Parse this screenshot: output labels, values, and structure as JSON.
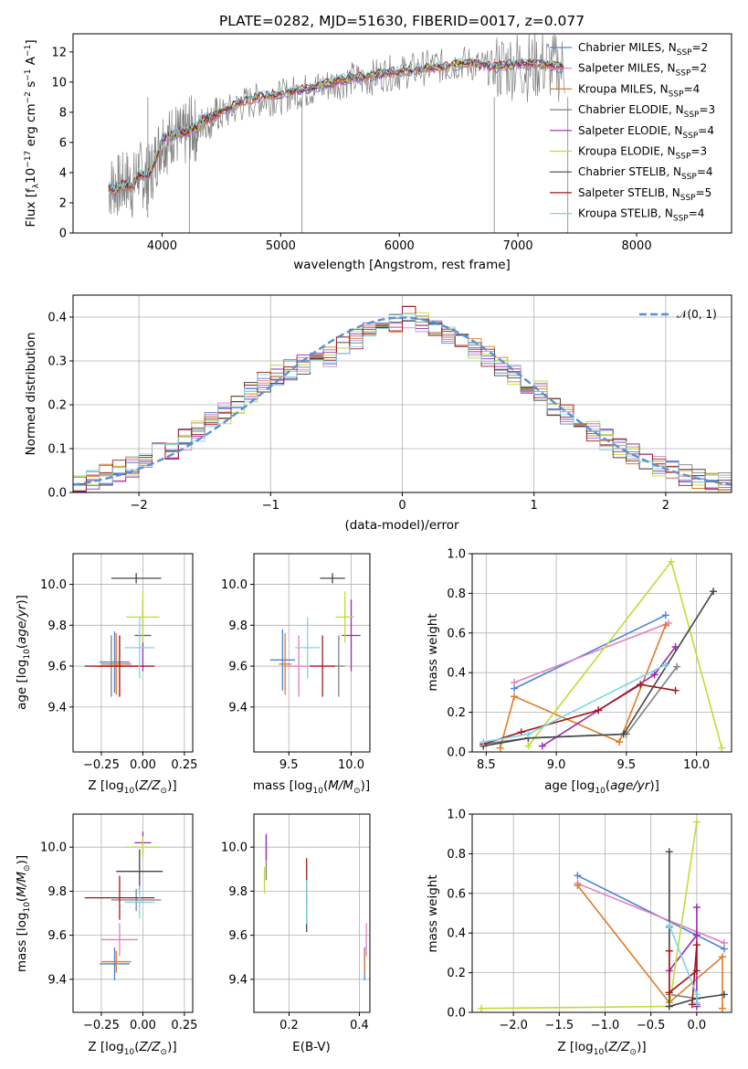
{
  "colors": {
    "Chabrier MILES": "#4f81d6",
    "Salpeter MILES": "#e07fc0",
    "Kroupa MILES": "#e07a24",
    "Chabrier ELODIE": "#7f7f7f",
    "Salpeter ELODIE": "#9a2ab0",
    "Kroupa ELODIE": "#bedd35",
    "Chabrier STELIB": "#444444",
    "Salpeter STELIB": "#a01818",
    "Kroupa STELIB": "#7fd3e6",
    "data": "#808080",
    "normal": "#5b8fd4"
  },
  "chart_data": [
    {
      "type": "line",
      "title": "PLATE=0282, MJD=51630, FIBERID=0017, z=0.077",
      "xlabel": "wavelength [Angstrom, rest frame]",
      "ylabel": "Flux [fλ10⁻¹⁷ erg cm⁻² s⁻¹ A⁻¹]",
      "xlim": [
        3250,
        8800
      ],
      "ylim": [
        0,
        13.2
      ],
      "xticks": [
        4000,
        5000,
        6000,
        7000,
        8000
      ],
      "yticks": [
        0,
        2,
        4,
        6,
        8,
        10,
        12
      ],
      "grid": false,
      "legend_position": "right",
      "legend": [
        "Chabrier MILES, N_SSP=2",
        "Salpeter MILES, N_SSP=2",
        "Kroupa MILES, N_SSP=4",
        "Chabrier ELODIE, N_SSP=3",
        "Salpeter ELODIE, N_SSP=4",
        "Kroupa ELODIE, N_SSP=3",
        "Chabrier STELIB, N_SSP=4",
        "Salpeter STELIB, N_SSP=5",
        "Kroupa STELIB, N_SSP=4"
      ],
      "legend_display": [
        {
          "pre": "Chabrier MILES, N",
          "sub": "SSP",
          "post": "=2",
          "key": "Chabrier MILES"
        },
        {
          "pre": "Salpeter MILES, N",
          "sub": "SSP",
          "post": "=2",
          "key": "Salpeter MILES"
        },
        {
          "pre": "Kroupa MILES, N",
          "sub": "SSP",
          "post": "=4",
          "key": "Kroupa MILES"
        },
        {
          "pre": "Chabrier ELODIE, N",
          "sub": "SSP",
          "post": "=3",
          "key": "Chabrier ELODIE"
        },
        {
          "pre": "Salpeter ELODIE, N",
          "sub": "SSP",
          "post": "=4",
          "key": "Salpeter ELODIE"
        },
        {
          "pre": "Kroupa ELODIE, N",
          "sub": "SSP",
          "post": "=3",
          "key": "Kroupa ELODIE"
        },
        {
          "pre": "Chabrier STELIB, N",
          "sub": "SSP",
          "post": "=4",
          "key": "Chabrier STELIB"
        },
        {
          "pre": "Salpeter STELIB, N",
          "sub": "SSP",
          "post": "=5",
          "key": "Salpeter STELIB"
        },
        {
          "pre": "Kroupa STELIB, N",
          "sub": "SSP",
          "post": "=4",
          "key": "Kroupa STELIB"
        }
      ],
      "data_spectrum": {
        "x": [
          3550,
          3600,
          3650,
          3700,
          3750,
          3800,
          3850,
          3900,
          3950,
          4000,
          4050,
          4100,
          4150,
          4200,
          4250,
          4300,
          4350,
          4400,
          4450,
          4500,
          4600,
          4700,
          4800,
          4900,
          5000,
          5100,
          5200,
          5300,
          5400,
          5500,
          5600,
          5700,
          5800,
          5900,
          6000,
          6100,
          6200,
          6300,
          6400,
          6500,
          6600,
          6700,
          6800,
          6900,
          7000,
          7100,
          7200,
          7300,
          7400
        ],
        "y": [
          3.0,
          3.2,
          3.1,
          3.5,
          3.0,
          4.2,
          3.6,
          3.8,
          5.0,
          6.3,
          6.0,
          6.8,
          6.2,
          6.5,
          7.0,
          6.7,
          7.5,
          7.3,
          7.9,
          7.8,
          8.2,
          8.6,
          8.8,
          8.9,
          9.0,
          9.3,
          9.4,
          9.6,
          9.8,
          10.0,
          10.2,
          10.1,
          10.4,
          10.6,
          10.6,
          10.8,
          10.9,
          11.1,
          11.0,
          11.3,
          11.2,
          11.0,
          10.9,
          11.1,
          11.2,
          11.0,
          11.2,
          11.0,
          10.9
        ]
      },
      "model_spectrum": {
        "x": [
          3550,
          3600,
          3650,
          3700,
          3750,
          3800,
          3850,
          3900,
          3950,
          4000,
          4050,
          4100,
          4150,
          4200,
          4250,
          4300,
          4350,
          4400,
          4450,
          4500,
          4600,
          4700,
          4800,
          4900,
          5000,
          5100,
          5200,
          5300,
          5400,
          5500,
          5600,
          5700,
          5800,
          5900,
          6000,
          6100,
          6200,
          6300,
          6400,
          6500,
          6600,
          6700,
          6800,
          6900,
          7000,
          7100,
          7200,
          7300,
          7400
        ],
        "y": [
          3.0,
          2.8,
          3.1,
          3.2,
          3.0,
          3.9,
          3.8,
          4.0,
          4.9,
          6.2,
          6.4,
          6.5,
          6.7,
          6.6,
          6.9,
          7.0,
          7.5,
          7.6,
          7.8,
          8.1,
          8.4,
          8.8,
          9.0,
          9.1,
          9.2,
          9.4,
          9.5,
          9.7,
          9.9,
          10.1,
          10.3,
          10.3,
          10.5,
          10.6,
          10.7,
          10.8,
          10.9,
          11.0,
          11.0,
          11.2,
          11.3,
          11.1,
          11.0,
          11.1,
          11.2,
          11.2,
          11.2,
          11.1,
          11.0
        ]
      }
    },
    {
      "type": "line",
      "xlabel": "(data-model)/error",
      "ylabel": "Normed distribution",
      "xlim": [
        -2.5,
        2.5
      ],
      "ylim": [
        0,
        0.45
      ],
      "xticks": [
        -2,
        -1,
        0,
        1,
        2
      ],
      "yticks": [
        0.0,
        0.1,
        0.2,
        0.3,
        0.4
      ],
      "grid": true,
      "legend_position": "top-right",
      "legend": [
        "𝒩(0, 1)"
      ],
      "normal_curve": {
        "mean": 0,
        "sigma": 1
      },
      "histogram": {
        "bin_width": 0.1,
        "bin_start": -2.5,
        "counts": [
          0.025,
          0.03,
          0.04,
          0.05,
          0.06,
          0.07,
          0.09,
          0.1,
          0.12,
          0.14,
          0.16,
          0.18,
          0.2,
          0.23,
          0.25,
          0.27,
          0.28,
          0.29,
          0.3,
          0.31,
          0.33,
          0.35,
          0.37,
          0.38,
          0.39,
          0.4,
          0.39,
          0.38,
          0.36,
          0.35,
          0.33,
          0.31,
          0.29,
          0.27,
          0.25,
          0.23,
          0.2,
          0.18,
          0.16,
          0.14,
          0.12,
          0.1,
          0.09,
          0.07,
          0.06,
          0.05,
          0.04,
          0.03,
          0.025,
          0.02
        ]
      }
    },
    {
      "type": "scatter",
      "xlabel": "Z [log10(Z/Z⊙)]",
      "ylabel": "age  [log10(age/yr)]",
      "xlim": [
        -0.42,
        0.3
      ],
      "ylim": [
        9.18,
        10.15
      ],
      "xticks": [
        -0.25,
        0.0,
        0.25
      ],
      "yticks": [
        9.4,
        9.6,
        9.8,
        10.0
      ],
      "grid": true,
      "errorbars": [
        {
          "model": "Chabrier MILES",
          "x": -0.17,
          "y": 9.62,
          "xerr": 0.18,
          "yerr": 0.3
        },
        {
          "model": "Salpeter MILES",
          "x": -0.14,
          "y": 9.6,
          "xerr": 0.22,
          "yerr": 0.3
        },
        {
          "model": "Kroupa MILES",
          "x": -0.16,
          "y": 9.61,
          "xerr": 0.18,
          "yerr": 0.3
        },
        {
          "model": "Chabrier ELODIE",
          "x": -0.19,
          "y": 9.6,
          "xerr": 0.15,
          "yerr": 0.3
        },
        {
          "model": "Salpeter ELODIE",
          "x": 0.0,
          "y": 9.75,
          "xerr": 0.1,
          "yerr": 0.35
        },
        {
          "model": "Kroupa ELODIE",
          "x": 0.0,
          "y": 9.84,
          "xerr": 0.2,
          "yerr": 0.25
        },
        {
          "model": "Chabrier STELIB",
          "x": -0.04,
          "y": 10.03,
          "xerr": 0.3,
          "yerr": 0.05
        },
        {
          "model": "Salpeter STELIB",
          "x": -0.14,
          "y": 9.6,
          "xerr": 0.42,
          "yerr": 0.3
        },
        {
          "model": "Kroupa STELIB",
          "x": -0.02,
          "y": 9.69,
          "xerr": 0.18,
          "yerr": 0.3
        }
      ]
    },
    {
      "type": "scatter",
      "xlabel": "mass [log10(M/M⊙)]",
      "ylabel": "",
      "xlim": [
        9.22,
        10.15
      ],
      "ylim": [
        9.18,
        10.15
      ],
      "xticks": [
        9.5,
        10.0
      ],
      "yticks": [
        9.4,
        9.6,
        9.8,
        10.0
      ],
      "grid": true,
      "errorbars": [
        {
          "model": "Chabrier MILES",
          "x": 9.45,
          "y": 9.63,
          "xerr": 0.2,
          "yerr": 0.3
        },
        {
          "model": "Salpeter MILES",
          "x": 9.58,
          "y": 9.6,
          "xerr": 0.2,
          "yerr": 0.3
        },
        {
          "model": "Kroupa MILES",
          "x": 9.47,
          "y": 9.61,
          "xerr": 0.1,
          "yerr": 0.3
        },
        {
          "model": "Chabrier ELODIE",
          "x": 9.9,
          "y": 9.6,
          "xerr": 0.1,
          "yerr": 0.3
        },
        {
          "model": "Salpeter ELODIE",
          "x": 10.0,
          "y": 9.75,
          "xerr": 0.15,
          "yerr": 0.35
        },
        {
          "model": "Kroupa ELODIE",
          "x": 9.95,
          "y": 9.84,
          "xerr": 0.15,
          "yerr": 0.25
        },
        {
          "model": "Chabrier STELIB",
          "x": 9.85,
          "y": 10.03,
          "xerr": 0.2,
          "yerr": 0.05
        },
        {
          "model": "Salpeter STELIB",
          "x": 9.77,
          "y": 9.6,
          "xerr": 0.2,
          "yerr": 0.3
        },
        {
          "model": "Kroupa STELIB",
          "x": 9.65,
          "y": 9.69,
          "xerr": 0.2,
          "yerr": 0.3
        }
      ]
    },
    {
      "type": "line",
      "xlabel": "age  [log10(age/yr)]",
      "ylabel": "mass weight",
      "xlim": [
        8.4,
        10.25
      ],
      "ylim": [
        0.0,
        1.0
      ],
      "xticks": [
        8.5,
        9.0,
        9.5,
        10.0
      ],
      "yticks": [
        0.0,
        0.2,
        0.4,
        0.6,
        0.8,
        1.0
      ],
      "grid": true,
      "series": [
        {
          "model": "Chabrier MILES",
          "x": [
            8.7,
            9.78
          ],
          "y": [
            0.32,
            0.69
          ]
        },
        {
          "model": "Salpeter MILES",
          "x": [
            8.7,
            9.8
          ],
          "y": [
            0.35,
            0.65
          ]
        },
        {
          "model": "Kroupa MILES",
          "x": [
            8.6,
            8.7,
            9.45,
            9.78
          ],
          "y": [
            0.02,
            0.28,
            0.05,
            0.64
          ]
        },
        {
          "model": "Chabrier ELODIE",
          "x": [
            8.48,
            8.8,
            9.5,
            9.86
          ],
          "y": [
            0.04,
            0.07,
            0.09,
            0.43
          ]
        },
        {
          "model": "Salpeter ELODIE",
          "x": [
            8.9,
            9.3,
            9.7,
            9.85
          ],
          "y": [
            0.03,
            0.21,
            0.39,
            0.53
          ]
        },
        {
          "model": "Kroupa ELODIE",
          "x": [
            8.8,
            9.82,
            10.18
          ],
          "y": [
            0.03,
            0.96,
            0.02
          ]
        },
        {
          "model": "Chabrier STELIB",
          "x": [
            8.48,
            8.8,
            9.48,
            10.12
          ],
          "y": [
            0.03,
            0.07,
            0.09,
            0.81
          ]
        },
        {
          "model": "Salpeter STELIB",
          "x": [
            8.48,
            8.75,
            9.3,
            9.6,
            9.85
          ],
          "y": [
            0.04,
            0.1,
            0.21,
            0.34,
            0.31
          ]
        },
        {
          "model": "Kroupa STELIB",
          "x": [
            8.48,
            8.8,
            9.78
          ],
          "y": [
            0.05,
            0.09,
            0.44
          ]
        }
      ]
    },
    {
      "type": "scatter",
      "xlabel": "Z [log10(Z/Z⊙)]",
      "ylabel": "mass [log10(M/M⊙)]",
      "xlim": [
        -0.42,
        0.3
      ],
      "ylim": [
        9.25,
        10.15
      ],
      "xticks": [
        -0.25,
        0.0,
        0.25
      ],
      "yticks": [
        9.4,
        9.6,
        9.8,
        10.0
      ],
      "grid": true,
      "errorbars": [
        {
          "model": "Chabrier MILES",
          "x": -0.17,
          "y": 9.47,
          "xerr": 0.18,
          "yerr": 0.15
        },
        {
          "model": "Salpeter MILES",
          "x": -0.14,
          "y": 9.58,
          "xerr": 0.22,
          "yerr": 0.15
        },
        {
          "model": "Kroupa MILES",
          "x": -0.16,
          "y": 9.48,
          "xerr": 0.18,
          "yerr": 0.1
        },
        {
          "model": "Chabrier ELODIE",
          "x": -0.04,
          "y": 9.76,
          "xerr": 0.3,
          "yerr": 0.1
        },
        {
          "model": "Salpeter ELODIE",
          "x": 0.0,
          "y": 10.02,
          "xerr": 0.1,
          "yerr": 0.1
        },
        {
          "model": "Kroupa ELODIE",
          "x": 0.0,
          "y": 10.0,
          "xerr": 0.2,
          "yerr": 0.1
        },
        {
          "model": "Chabrier STELIB",
          "x": -0.02,
          "y": 9.89,
          "xerr": 0.28,
          "yerr": 0.2
        },
        {
          "model": "Salpeter STELIB",
          "x": -0.14,
          "y": 9.77,
          "xerr": 0.42,
          "yerr": 0.2
        },
        {
          "model": "Kroupa STELIB",
          "x": -0.02,
          "y": 9.75,
          "xerr": 0.18,
          "yerr": 0.15
        }
      ]
    },
    {
      "type": "scatter",
      "xlabel": "E(B-V)",
      "ylabel": "",
      "xlim": [
        0.1,
        0.43
      ],
      "ylim": [
        9.25,
        10.15
      ],
      "xticks": [
        0.2,
        0.4
      ],
      "yticks": [
        9.4,
        9.6,
        9.8,
        10.0
      ],
      "grid": true,
      "errorbars": [
        {
          "model": "Chabrier MILES",
          "x": 0.415,
          "y": 9.47,
          "yerr": 0.15
        },
        {
          "model": "Salpeter MILES",
          "x": 0.42,
          "y": 9.58,
          "yerr": 0.15
        },
        {
          "model": "Kroupa MILES",
          "x": 0.415,
          "y": 9.48,
          "yerr": 0.1
        },
        {
          "model": "Chabrier ELODIE",
          "x": 0.135,
          "y": 9.95,
          "yerr": 0.2
        },
        {
          "model": "Salpeter ELODIE",
          "x": 0.135,
          "y": 10.0,
          "yerr": 0.12
        },
        {
          "model": "Kroupa ELODIE",
          "x": 0.13,
          "y": 9.85,
          "yerr": 0.12
        },
        {
          "model": "Chabrier STELIB",
          "x": 0.25,
          "y": 9.7,
          "yerr": 0.17
        },
        {
          "model": "Salpeter STELIB",
          "x": 0.25,
          "y": 9.85,
          "yerr": 0.2
        },
        {
          "model": "Kroupa STELIB",
          "x": 0.25,
          "y": 9.75,
          "yerr": 0.2
        }
      ]
    },
    {
      "type": "line",
      "xlabel": "Z [log10(Z/Z⊙)]",
      "ylabel": "mass weight",
      "xlim": [
        -2.45,
        0.38
      ],
      "ylim": [
        0.0,
        1.0
      ],
      "xticks": [
        -2.0,
        -1.5,
        -1.0,
        -0.5,
        0.0
      ],
      "yticks": [
        0.0,
        0.2,
        0.4,
        0.6,
        0.8,
        1.0
      ],
      "grid": true,
      "series": [
        {
          "model": "Chabrier MILES",
          "x": [
            -1.3,
            0.3
          ],
          "y": [
            0.69,
            0.32
          ]
        },
        {
          "model": "Salpeter MILES",
          "x": [
            -1.3,
            0.3
          ],
          "y": [
            0.65,
            0.35
          ]
        },
        {
          "model": "Kroupa MILES",
          "x": [
            -1.3,
            -0.3,
            0.28,
            0.28
          ],
          "y": [
            0.64,
            0.05,
            0.28,
            0.02
          ]
        },
        {
          "model": "Chabrier ELODIE",
          "x": [
            -0.3,
            -0.3,
            0.0,
            0.0
          ],
          "y": [
            0.43,
            0.09,
            0.07,
            0.04
          ]
        },
        {
          "model": "Salpeter ELODIE",
          "x": [
            -0.3,
            0.0,
            0.0,
            0.0
          ],
          "y": [
            0.21,
            0.39,
            0.53,
            0.03
          ]
        },
        {
          "model": "Kroupa ELODIE",
          "x": [
            -2.35,
            -0.3,
            0.0
          ],
          "y": [
            0.02,
            0.03,
            0.96
          ]
        },
        {
          "model": "Chabrier STELIB",
          "x": [
            -0.3,
            -0.3,
            0.0,
            0.3
          ],
          "y": [
            0.81,
            0.03,
            0.07,
            0.09
          ]
        },
        {
          "model": "Salpeter STELIB",
          "x": [
            -0.3,
            -0.3,
            0.0,
            0.0,
            -0.05
          ],
          "y": [
            0.31,
            0.1,
            0.21,
            0.34,
            0.04
          ]
        },
        {
          "model": "Kroupa STELIB",
          "x": [
            -0.3,
            0.0,
            0.0
          ],
          "y": [
            0.44,
            0.09,
            0.05
          ]
        }
      ]
    }
  ]
}
